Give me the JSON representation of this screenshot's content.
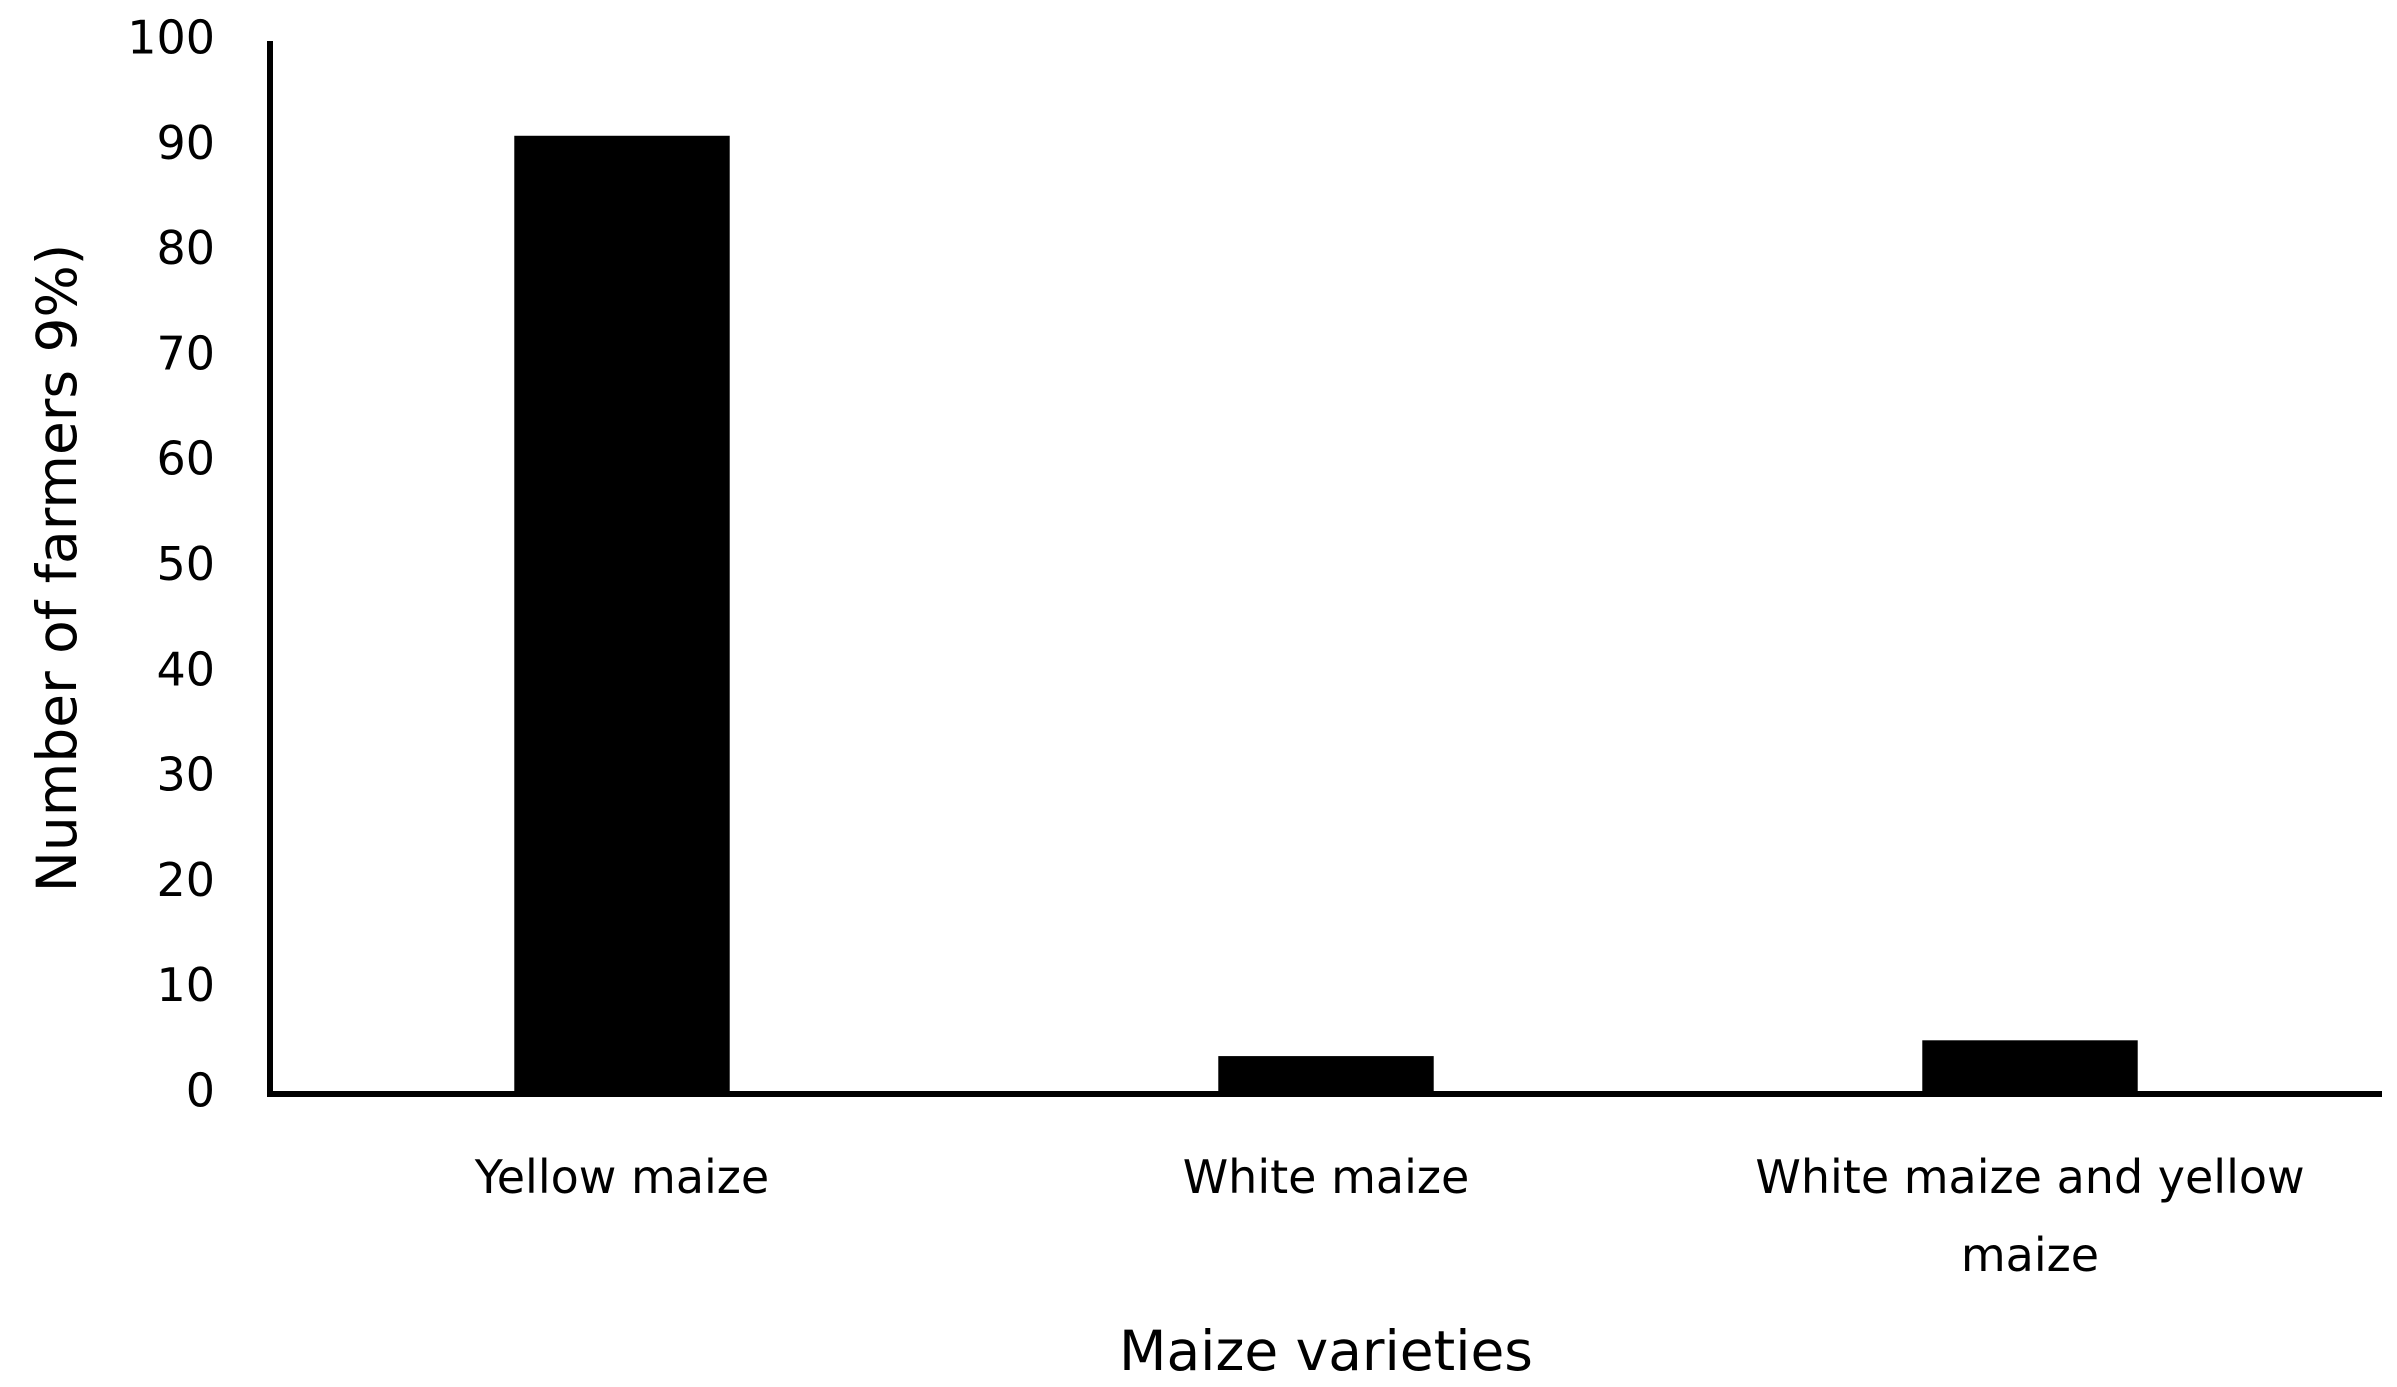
{
  "chart_data": {
    "type": "bar",
    "categories": [
      "Yellow maize",
      "White maize",
      "White maize and yellow maize"
    ],
    "values": [
      91,
      3.6,
      5.1
    ],
    "color": "#000000",
    "xlabel": "Maize varieties",
    "ylabel": "Number of farmers 9%)",
    "ylim": [
      0,
      100
    ],
    "yticks": [
      0,
      10,
      20,
      30,
      40,
      50,
      60,
      70,
      80,
      90,
      100
    ],
    "grid": false
  }
}
